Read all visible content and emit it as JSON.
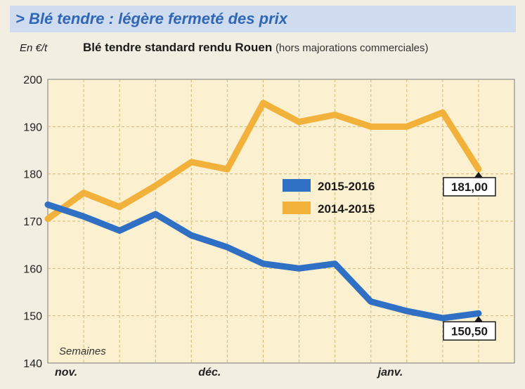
{
  "header": {
    "title": "> Blé tendre : légère fermeté des prix"
  },
  "chart_data": {
    "type": "line",
    "title": "Blé tendre standard rendu Rouen",
    "subtitle": "(hors majorations commerciales)",
    "ylabel": "En €/t",
    "xlabel": "Semaines",
    "ylim": [
      140,
      200
    ],
    "yticks": [
      140,
      150,
      160,
      170,
      180,
      190,
      200
    ],
    "x_tick_labels": [
      {
        "label": "nov.",
        "week": 0
      },
      {
        "label": "déc.",
        "week": 4
      },
      {
        "label": "janv.",
        "week": 9
      }
    ],
    "grid": true,
    "legend_position": "center",
    "x": [
      0,
      1,
      2,
      3,
      4,
      5,
      6,
      7,
      8,
      9,
      10,
      11,
      12
    ],
    "series": [
      {
        "name": "2015-2016",
        "color": "#2f6fc4",
        "values": [
          173.5,
          171,
          168,
          171.5,
          167,
          164.5,
          161,
          160,
          161,
          153,
          151,
          149.5,
          150.5
        ],
        "end_label": "150,50"
      },
      {
        "name": "2014-2015",
        "color": "#f2b13a",
        "values": [
          170.5,
          176,
          173,
          177.5,
          182.5,
          181,
          195,
          191,
          192.5,
          190,
          190,
          193,
          181
        ],
        "end_label": "181,00"
      }
    ]
  }
}
